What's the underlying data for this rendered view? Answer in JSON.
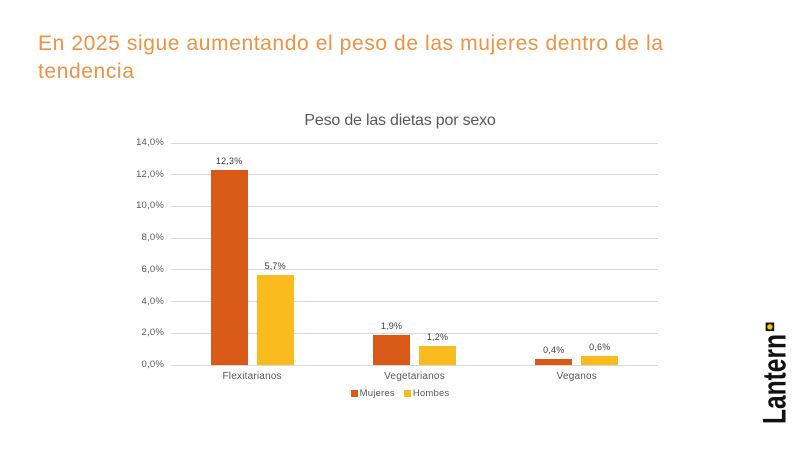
{
  "slide": {
    "title": "En 2025 sigue aumentando el peso de las mujeres dentro de la tendencia",
    "title_color": "#EE9243",
    "background": "#FFFFFF"
  },
  "chart_data": {
    "type": "bar",
    "title": "Peso de las dietas por sexo",
    "categories": [
      "Flexitarianos",
      "Vegetarianos",
      "Veganos"
    ],
    "series": [
      {
        "name": "Mujeres",
        "color": "#D95A16",
        "values": [
          12.3,
          1.9,
          0.4
        ],
        "value_labels": [
          "12,3%",
          "1,9%",
          "0,4%"
        ]
      },
      {
        "name": "Hombes",
        "color": "#F9BB1D",
        "values": [
          5.7,
          1.2,
          0.6
        ],
        "value_labels": [
          "5,7%",
          "1,2%",
          "0,6%"
        ]
      }
    ],
    "ylim": [
      0,
      14
    ],
    "y_ticks": [
      "0,0%",
      "2,0%",
      "4,0%",
      "6,0%",
      "8,0%",
      "10,0%",
      "12,0%",
      "14,0%"
    ],
    "grid": true,
    "gridline_color": "#D9D9D9",
    "legend_position": "bottom"
  },
  "logo": {
    "text": "Lantern",
    "text_color": "#111111",
    "mark_square_color": "#161412",
    "mark_dot_color": "#F0C41C"
  }
}
